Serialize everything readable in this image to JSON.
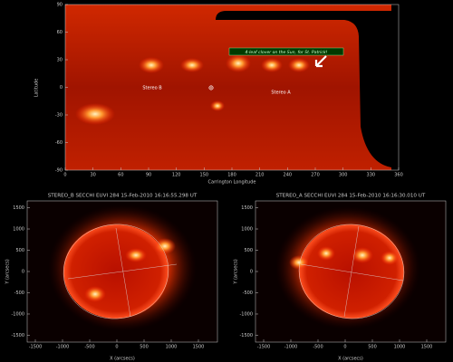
{
  "top_map": {
    "xlabel": "Carrington Longitude",
    "ylabel": "Latitude",
    "xlim": [
      0,
      360
    ],
    "ylim": [
      -90,
      90
    ],
    "xticks": [
      0,
      30,
      60,
      90,
      120,
      150,
      180,
      210,
      240,
      270,
      300,
      330,
      360
    ],
    "yticks": [
      -90,
      -60,
      -30,
      0,
      30,
      60,
      90
    ],
    "annotation": "4-leaf clover on the Sun, for St. Patrick!",
    "markers": [
      "Stereo B",
      "Stereo A"
    ]
  },
  "panels": [
    {
      "title": "STEREO_B SECCHI EUVI 284 15-Feb-2010 16:16:55.298 UT",
      "xlabel": "X (arcsecs)",
      "ylabel": "Y (arcsecs)",
      "xlim": [
        -1650,
        1850
      ],
      "ylim": [
        -1660,
        1660
      ],
      "xticks": [
        -1500,
        -1000,
        -500,
        0,
        500,
        1000,
        1500
      ],
      "yticks": [
        -1500,
        -1000,
        -500,
        0,
        500,
        1000,
        1500
      ]
    },
    {
      "title": "STEREO_A SECCHI EUVI 284 15-Feb-2010 16:16:30.010 UT",
      "xlabel": "X (arcsecs)",
      "ylabel": "Y (arcsecs)",
      "xlim": [
        -1650,
        1850
      ],
      "ylim": [
        -1660,
        1660
      ],
      "xticks": [
        -1500,
        -1000,
        -500,
        0,
        500,
        1000,
        1500
      ],
      "yticks": [
        -1500,
        -1000,
        -500,
        0,
        500,
        1000,
        1500
      ]
    }
  ]
}
